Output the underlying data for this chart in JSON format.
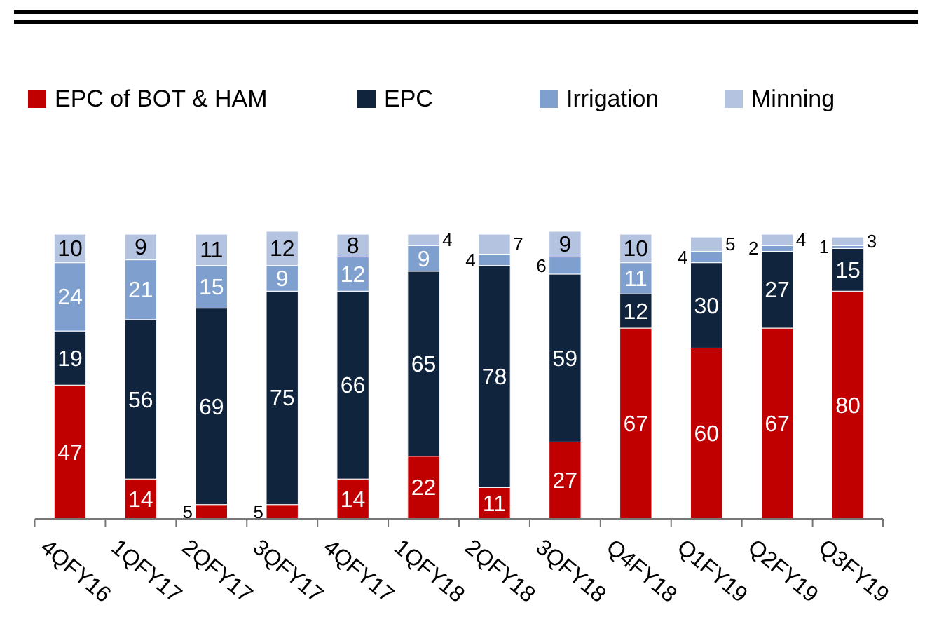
{
  "chart_data": {
    "type": "bar",
    "stacked": true,
    "data_labels": true,
    "legend": "top",
    "categories": [
      "4QFY16",
      "1QFY17",
      "2QFY17",
      "3QFY17",
      "4QFY17",
      "1QFY18",
      "2QFY18",
      "3QFY18",
      "Q4FY18",
      "Q1FY19",
      "Q2FY19",
      "Q3FY19"
    ],
    "series": [
      {
        "name": "EPC of BOT & HAM",
        "color": "#c00000",
        "values": [
          47,
          14,
          5,
          5,
          14,
          22,
          11,
          27,
          67,
          60,
          67,
          80
        ]
      },
      {
        "name": "EPC",
        "color": "#10243e",
        "values": [
          19,
          56,
          69,
          75,
          66,
          65,
          78,
          59,
          12,
          30,
          27,
          15
        ]
      },
      {
        "name": "Irrigation",
        "color": "#7f9fcf",
        "values": [
          24,
          21,
          15,
          9,
          12,
          9,
          4,
          6,
          11,
          4,
          2,
          1
        ]
      },
      {
        "name": "Minning",
        "color": "#b4c3df",
        "values": [
          10,
          9,
          11,
          12,
          8,
          4,
          7,
          9,
          10,
          5,
          4,
          3
        ]
      }
    ]
  }
}
